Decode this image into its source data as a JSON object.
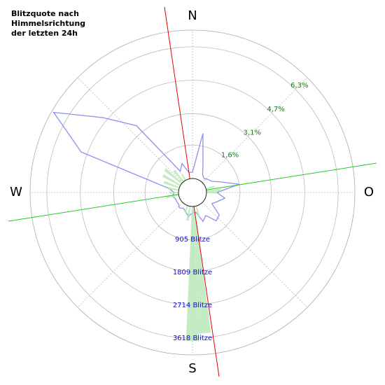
{
  "chart_data": {
    "type": "polar",
    "title": [
      "Blitzquote nach",
      "Himmelsrichtung",
      "der letzten 24h"
    ],
    "direction_labels": [
      {
        "value": 0,
        "label": "N"
      },
      {
        "value": 90,
        "label": "O"
      },
      {
        "value": 180,
        "label": "S"
      },
      {
        "value": 270,
        "label": "W"
      }
    ],
    "rlim": [
      0,
      7.1
    ],
    "rticks": [
      {
        "value": 1.6,
        "label": "1,6%"
      },
      {
        "value": 3.1,
        "label": "3,1%"
      },
      {
        "value": 4.7,
        "label": "4,7%"
      },
      {
        "value": 6.3,
        "label": "6,3%"
      }
    ],
    "r2lim": [
      0,
      4077
    ],
    "r2ticks": [
      {
        "value": 905,
        "label": "905 Blitze"
      },
      {
        "value": 1809,
        "label": "1809 Blitze"
      },
      {
        "value": 2714,
        "label": "2714 Blitze"
      },
      {
        "value": 3618,
        "label": "3618 Blitze"
      }
    ],
    "series": [
      {
        "color": "#8a8ff0",
        "theta": [
          0,
          10,
          20,
          30,
          40,
          50,
          60,
          70,
          80,
          90,
          100,
          110,
          120,
          130,
          140,
          150,
          160,
          170,
          180,
          190,
          200,
          210,
          220,
          230,
          240,
          250,
          260,
          270,
          280,
          290,
          300,
          310,
          320,
          330,
          340,
          350
        ],
        "values": [
          0.3,
          2.2,
          0.8,
          0.3,
          0.2,
          0.3,
          0.4,
          0.8,
          1.6,
          0.5,
          0.9,
          0.6,
          0.4,
          1.0,
          1.1,
          0.6,
          0.8,
          0.3,
          0.3,
          0.5,
          0.3,
          0.2,
          0.3,
          0.2,
          0.2,
          0.2,
          0.3,
          0.2,
          0.5,
          5.0,
          7.0,
          4.9,
          3.5,
          0.5,
          0.8,
          0.3
        ]
      },
      {
        "color": "#b5e6b5",
        "axis": "r2",
        "theta": [
          75,
          85,
          90,
          165,
          175,
          180,
          190,
          200,
          260,
          270,
          280,
          290,
          300,
          310,
          320,
          330
        ],
        "values": [
          250,
          400,
          300,
          300,
          3500,
          3700,
          400,
          200,
          350,
          250,
          300,
          450,
          550,
          600,
          400,
          200
        ]
      }
    ]
  }
}
